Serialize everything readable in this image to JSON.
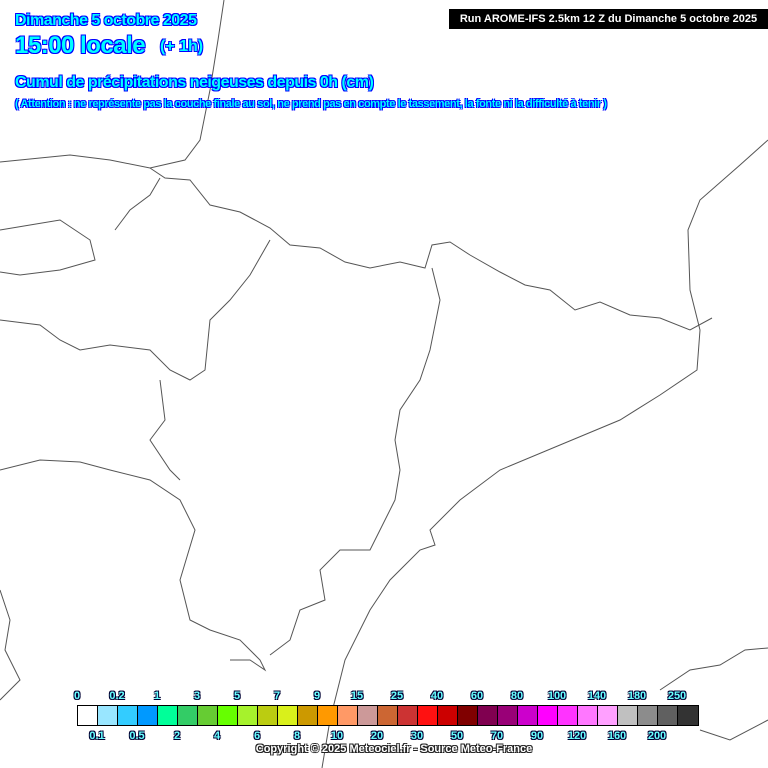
{
  "header": {
    "date": "Dimanche 5 octobre 2025",
    "time": "15:00 locale",
    "offset": "(+ 1h)",
    "title": "Cumul de précipitations neigeuses depuis 0h (cm)",
    "note": "( Attention : ne représente pas la couche finale au sol, ne prend pas en compte le tassement, la fonte ni la difficulté à tenir )",
    "run": "Run AROME-IFS 2.5km 12 Z du Dimanche 5 octobre 2025"
  },
  "legend": {
    "labels": [
      "0",
      "0.1",
      "0.2",
      "0.5",
      "1",
      "2",
      "3",
      "4",
      "5",
      "6",
      "7",
      "8",
      "9",
      "10",
      "15",
      "20",
      "25",
      "30",
      "40",
      "50",
      "60",
      "70",
      "80",
      "90",
      "100",
      "120",
      "140",
      "160",
      "180",
      "200",
      "250"
    ],
    "colors": [
      "#ffffff",
      "#99e6ff",
      "#33ccff",
      "#0099ff",
      "#00ff99",
      "#33cc66",
      "#66cc33",
      "#66ff00",
      "#a6f22c",
      "#bbcc11",
      "#d9f01b",
      "#cc9900",
      "#ff9900",
      "#ff9966",
      "#cc9999",
      "#cc6633",
      "#cc3333",
      "#ff1111",
      "#cc0000",
      "#800000",
      "#800050",
      "#990077",
      "#cc00cc",
      "#ff00ff",
      "#ff33ff",
      "#ff77ff",
      "#ffa0ff",
      "#c0c0c0",
      "#8c8c8c",
      "#606060",
      "#333333"
    ]
  },
  "map": {
    "border_color": "#555555",
    "snow_present": false
  },
  "copyright": "Copyright © 2025 Meteociel.fr - Source Meteo-France"
}
